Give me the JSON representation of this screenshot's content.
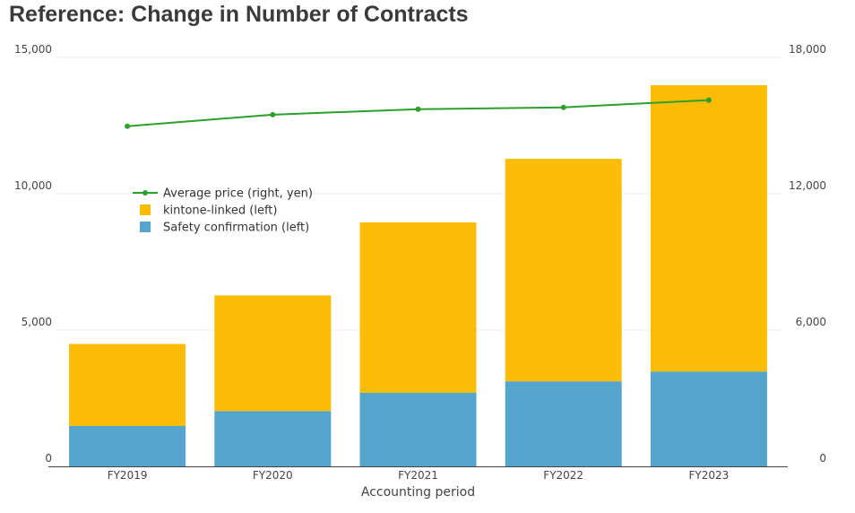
{
  "page": {
    "title": "Reference: Change in Number of Contracts"
  },
  "chart_data": {
    "type": "bar",
    "stacked": true,
    "categories": [
      "FY2019",
      "FY2020",
      "FY2021",
      "FY2022",
      "FY2023"
    ],
    "series": [
      {
        "name": "Safety confirmation (left)",
        "axis": "left",
        "color": "#55a4cc",
        "values": [
          1480,
          2030,
          2700,
          3120,
          3480
        ]
      },
      {
        "name": "kintone-linked (left)",
        "axis": "left",
        "color": "#fbbc05",
        "values": [
          3010,
          4240,
          6250,
          8160,
          10500
        ]
      }
    ],
    "line_series": [
      {
        "name": "Average price (right, yen)",
        "axis": "right",
        "color": "#2ca02c",
        "values": [
          14970,
          15480,
          15720,
          15800,
          16120
        ]
      }
    ],
    "xlabel": "Accounting period",
    "ylabel": "",
    "y2label": "",
    "ylim": [
      0,
      15000
    ],
    "y2lim": [
      0,
      18000
    ],
    "yticks": [
      0,
      5000,
      10000,
      15000
    ],
    "yticks_labels": [
      "0",
      "5,000",
      "10,000",
      "15,000"
    ],
    "y2ticks": [
      0,
      6000,
      12000,
      18000
    ],
    "y2ticks_labels": [
      "0",
      "6,000",
      "12,000",
      "18,000"
    ],
    "grid": true,
    "legend_position": "upper-left inside plot",
    "legend_order": [
      "Average price (right, yen)",
      "kintone-linked (left)",
      "Safety confirmation (left)"
    ]
  }
}
